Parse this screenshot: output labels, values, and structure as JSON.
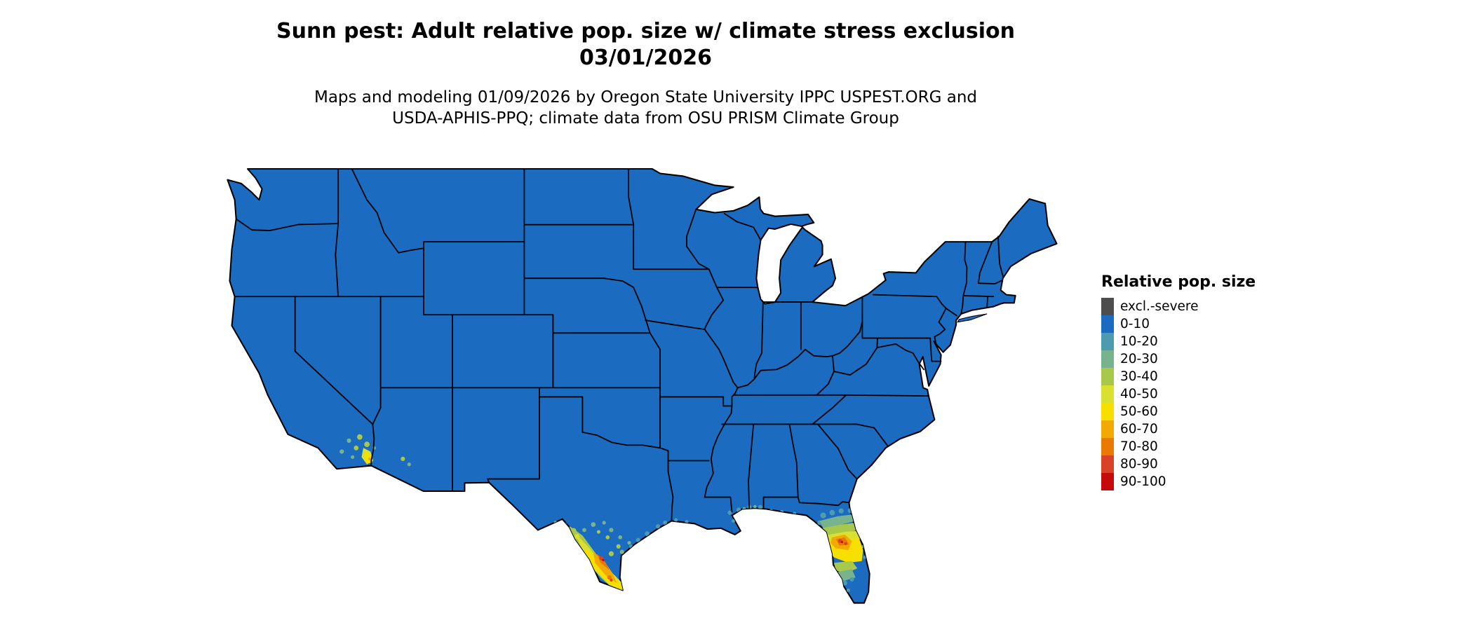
{
  "header": {
    "title_line1": "Sunn pest: Adult relative pop. size w/ climate stress exclusion",
    "title_line2": "03/01/2026",
    "subtitle_line1": "Maps and modeling 01/09/2026 by Oregon State University IPPC USPEST.ORG and",
    "subtitle_line2": "USDA-APHIS-PPQ; climate data from OSU PRISM Climate Group"
  },
  "legend": {
    "title": "Relative pop. size",
    "items": [
      {
        "label": "excl.-severe",
        "color": "#4d4d4d"
      },
      {
        "label": "0-10",
        "color": "#1b6cc0"
      },
      {
        "label": "10-20",
        "color": "#4e9aae"
      },
      {
        "label": "20-30",
        "color": "#77b48e"
      },
      {
        "label": "30-40",
        "color": "#a8c84c"
      },
      {
        "label": "40-50",
        "color": "#d9e02f"
      },
      {
        "label": "50-60",
        "color": "#f7df00"
      },
      {
        "label": "60-70",
        "color": "#f2a900"
      },
      {
        "label": "70-80",
        "color": "#e87a00"
      },
      {
        "label": "80-90",
        "color": "#d94226"
      },
      {
        "label": "90-100",
        "color": "#c40a0a"
      }
    ]
  },
  "map": {
    "water_color": "#ffffff",
    "border_color": "#000000",
    "base_category": "0-10"
  },
  "chart_data": {
    "type": "choropleth_map",
    "region": "Contiguous United States with state boundaries",
    "legend_title": "Relative pop. size",
    "categories": [
      "excl.-severe",
      "0-10",
      "10-20",
      "20-30",
      "30-40",
      "40-50",
      "50-60",
      "60-70",
      "70-80",
      "80-90",
      "90-100"
    ],
    "readings": [
      {
        "area": "Most of the contiguous US",
        "category": "0-10"
      },
      {
        "area": "South Texas along the Rio Grande (Del Rio to Brownsville)",
        "category": "hotspot reaching 90-100"
      },
      {
        "area": "Texas Gulf Coast fringe",
        "category": "10-20 to 30-40 speckle"
      },
      {
        "area": "Central Florida peninsula",
        "category": "hotspot reaching 90-100"
      },
      {
        "area": "Northern and southern Florida peninsula fringe",
        "category": "10-20 to 30-40"
      },
      {
        "area": "Gulf Coast near Louisiana / Mississippi / Alabama",
        "category": "10-20 speckle"
      },
      {
        "area": "Lower Colorado River valley (southern California / Arizona)",
        "category": "patch reaching 50-60"
      }
    ]
  }
}
